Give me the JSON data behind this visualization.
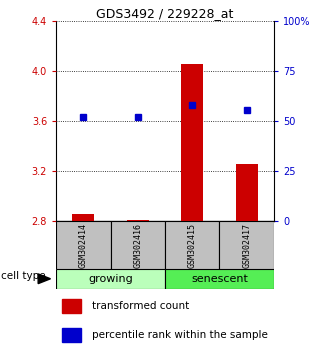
{
  "title": "GDS3492 / 229228_at",
  "samples": [
    "GSM302414",
    "GSM302416",
    "GSM302415",
    "GSM302417"
  ],
  "red_values": [
    2.86,
    2.81,
    4.06,
    3.26
  ],
  "blue_values": [
    3.63,
    3.63,
    3.73,
    3.69
  ],
  "ylim_left": [
    2.8,
    4.4
  ],
  "ylim_right": [
    0,
    100
  ],
  "yticks_left": [
    2.8,
    3.2,
    3.6,
    4.0,
    4.4
  ],
  "yticks_right": [
    0,
    25,
    50,
    75,
    100
  ],
  "ytick_labels_left": [
    "2.8",
    "3.2",
    "3.6",
    "4.0",
    "4.4"
  ],
  "ytick_labels_right": [
    "0",
    "25",
    "50",
    "75",
    "100%"
  ],
  "left_color": "#cc0000",
  "right_color": "#0000cc",
  "bar_width": 0.4,
  "label_box_color": "#c0c0c0",
  "growing_color": "#bbffbb",
  "senescent_color": "#55ee55",
  "legend_red_label": "transformed count",
  "legend_blue_label": "percentile rank within the sample",
  "cell_type_label": "cell type"
}
